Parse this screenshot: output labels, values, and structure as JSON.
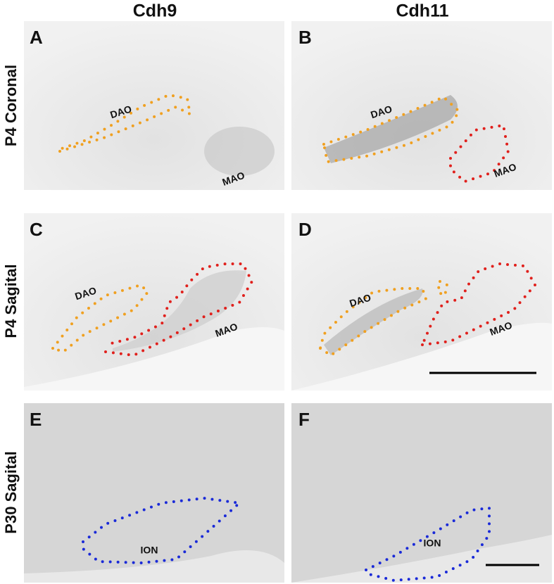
{
  "column_headers": [
    "Cdh9",
    "Cdh11"
  ],
  "row_labels": [
    "P4 Coronal",
    "P4 Sagital",
    "P30 Sagital"
  ],
  "panels": [
    {
      "letter": "A",
      "regions": [
        "DAO",
        "MAO"
      ]
    },
    {
      "letter": "B",
      "regions": [
        "DAO",
        "MAO"
      ]
    },
    {
      "letter": "C",
      "regions": [
        "DAO",
        "MAO"
      ]
    },
    {
      "letter": "D",
      "regions": [
        "DAO",
        "MAO"
      ]
    },
    {
      "letter": "E",
      "regions": [
        "ION"
      ]
    },
    {
      "letter": "F",
      "regions": [
        "ION"
      ]
    }
  ]
}
